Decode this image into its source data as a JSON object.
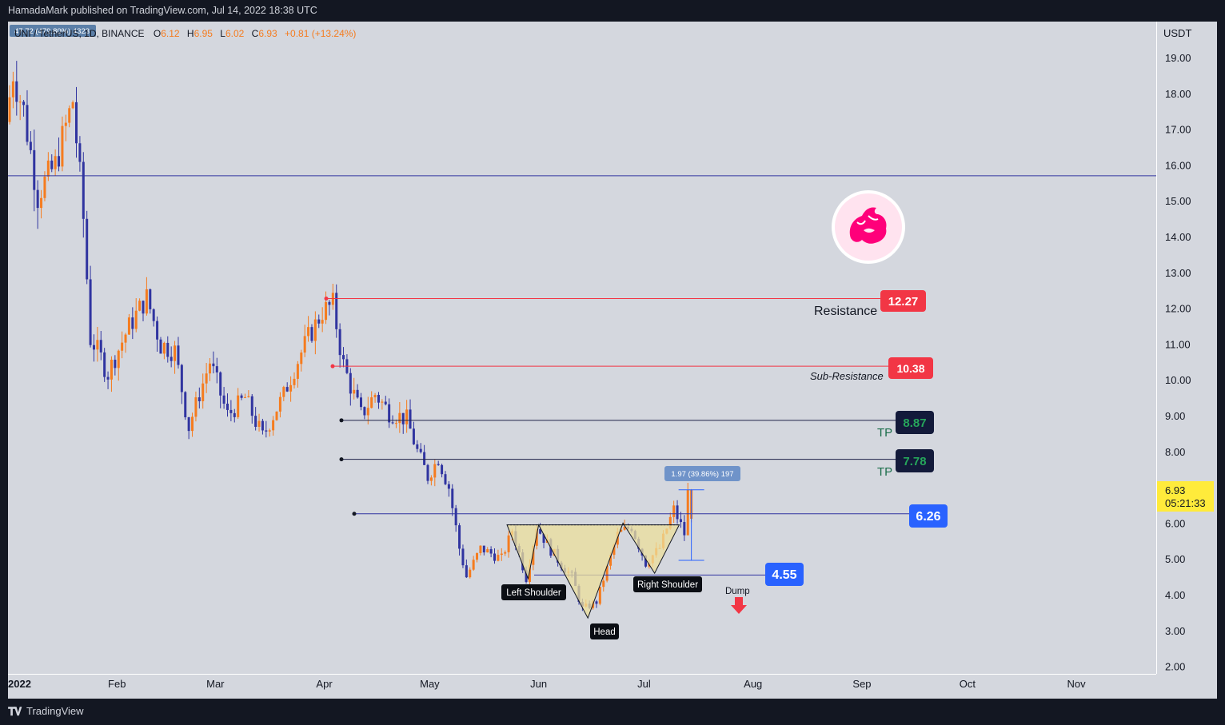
{
  "header": {
    "publisher_line": "HamadaMark published on TradingView.com, Jul 14, 2022 18:38 UTC"
  },
  "symbol_bar": {
    "top_badge": "47.72 (479.80%) 4323",
    "symbol": "UNI / TetherUS, 1D, BINANCE",
    "o_label": "O",
    "o": "6.12",
    "h_label": "H",
    "h": "6.95",
    "l_label": "L",
    "l": "6.02",
    "c_label": "C",
    "c": "6.93",
    "change": "+0.81 (+13.24%)"
  },
  "price_axis": {
    "unit": "USDT",
    "ticks": [
      "19.00",
      "18.00",
      "17.00",
      "16.00",
      "15.00",
      "14.00",
      "13.00",
      "12.00",
      "11.00",
      "10.00",
      "9.00",
      "8.00",
      "7.00",
      "6.00",
      "5.00",
      "4.00",
      "3.00",
      "2.00"
    ],
    "current_price": "6.93",
    "countdown": "05:21:33"
  },
  "time_axis": {
    "labels": [
      "2022",
      "Feb",
      "Mar",
      "Apr",
      "May",
      "Jun",
      "Jul",
      "Aug",
      "Sep",
      "Oct",
      "Nov"
    ]
  },
  "colors": {
    "background": "#d4d7de",
    "bull": "#f57c1f",
    "bear": "#3034a0",
    "resistance": "#f23645",
    "line": "#3034a0",
    "pattern_fill": "#ecdf9b",
    "tp_box": "#131a3a",
    "tp_text": "#26a65b",
    "blue_box": "#2962ff",
    "dump_arrow": "#f23645"
  },
  "levels": {
    "resistance": {
      "value": "12.27",
      "label": "Resistance"
    },
    "sub_resistance": {
      "value": "10.38",
      "label": "Sub-Resistance"
    },
    "tp1": {
      "value": "8.87",
      "label": "TP"
    },
    "tp2": {
      "value": "7.78",
      "label": "TP"
    },
    "neckline": {
      "value": "6.26"
    },
    "support": {
      "value": "4.55"
    },
    "upper_line_price": 15.7
  },
  "pattern": {
    "left_shoulder": "Left Shoulder",
    "head": "Head",
    "right_shoulder": "Right Shoulder"
  },
  "measure": {
    "label": "1.97 (39.86%) 197"
  },
  "dump": {
    "label": "Dump"
  },
  "logo": {
    "name": "uniswap-logo"
  },
  "footer": {
    "brand": "TradingView"
  },
  "chart_data": {
    "type": "candlestick",
    "symbol": "UNI / TetherUS",
    "interval": "1D",
    "exchange": "BINANCE",
    "y_unit": "USDT",
    "ylim": [
      2.0,
      19.5
    ],
    "grid": false,
    "x_range": [
      "2022-01-01",
      "2022-11-30"
    ],
    "horizontal_lines": [
      15.7,
      12.27,
      10.38,
      8.87,
      7.78,
      6.26,
      4.55
    ],
    "anchors": [
      {
        "date": "2022-01-01",
        "close": 17.2
      },
      {
        "date": "2022-01-03",
        "close": 18.6
      },
      {
        "date": "2022-01-06",
        "close": 17.5
      },
      {
        "date": "2022-01-10",
        "close": 15.2
      },
      {
        "date": "2022-01-15",
        "close": 16.0
      },
      {
        "date": "2022-01-20",
        "close": 17.8
      },
      {
        "date": "2022-01-23",
        "close": 14.5
      },
      {
        "date": "2022-01-25",
        "close": 11.2
      },
      {
        "date": "2022-01-30",
        "close": 10.2
      },
      {
        "date": "2022-02-05",
        "close": 11.5
      },
      {
        "date": "2022-02-10",
        "close": 12.3
      },
      {
        "date": "2022-02-14",
        "close": 11.0
      },
      {
        "date": "2022-02-18",
        "close": 10.8
      },
      {
        "date": "2022-02-22",
        "close": 8.7
      },
      {
        "date": "2022-02-28",
        "close": 10.5
      },
      {
        "date": "2022-03-05",
        "close": 9.0
      },
      {
        "date": "2022-03-10",
        "close": 9.5
      },
      {
        "date": "2022-03-15",
        "close": 8.4
      },
      {
        "date": "2022-03-21",
        "close": 9.6
      },
      {
        "date": "2022-03-27",
        "close": 11.0
      },
      {
        "date": "2022-04-01",
        "close": 11.9
      },
      {
        "date": "2022-04-04",
        "close": 12.1
      },
      {
        "date": "2022-04-07",
        "close": 10.4
      },
      {
        "date": "2022-04-12",
        "close": 9.0
      },
      {
        "date": "2022-04-16",
        "close": 9.6
      },
      {
        "date": "2022-04-20",
        "close": 9.1
      },
      {
        "date": "2022-04-25",
        "close": 8.9
      },
      {
        "date": "2022-04-28",
        "close": 8.0
      },
      {
        "date": "2022-05-01",
        "close": 7.3
      },
      {
        "date": "2022-05-04",
        "close": 7.8
      },
      {
        "date": "2022-05-07",
        "close": 7.0
      },
      {
        "date": "2022-05-10",
        "close": 5.3
      },
      {
        "date": "2022-05-12",
        "close": 4.5
      },
      {
        "date": "2022-05-16",
        "close": 5.3
      },
      {
        "date": "2022-05-22",
        "close": 5.0
      },
      {
        "date": "2022-05-25",
        "close": 5.8
      },
      {
        "date": "2022-05-29",
        "close": 4.5
      },
      {
        "date": "2022-06-01",
        "close": 5.9
      },
      {
        "date": "2022-06-06",
        "close": 5.1
      },
      {
        "date": "2022-06-11",
        "close": 4.5
      },
      {
        "date": "2022-06-14",
        "close": 3.6
      },
      {
        "date": "2022-06-18",
        "close": 3.8
      },
      {
        "date": "2022-06-24",
        "close": 5.7
      },
      {
        "date": "2022-06-28",
        "close": 5.9
      },
      {
        "date": "2022-07-02",
        "close": 4.9
      },
      {
        "date": "2022-07-06",
        "close": 5.3
      },
      {
        "date": "2022-07-10",
        "close": 6.4
      },
      {
        "date": "2022-07-13",
        "close": 5.7
      },
      {
        "date": "2022-07-14",
        "close": 6.93
      }
    ]
  }
}
